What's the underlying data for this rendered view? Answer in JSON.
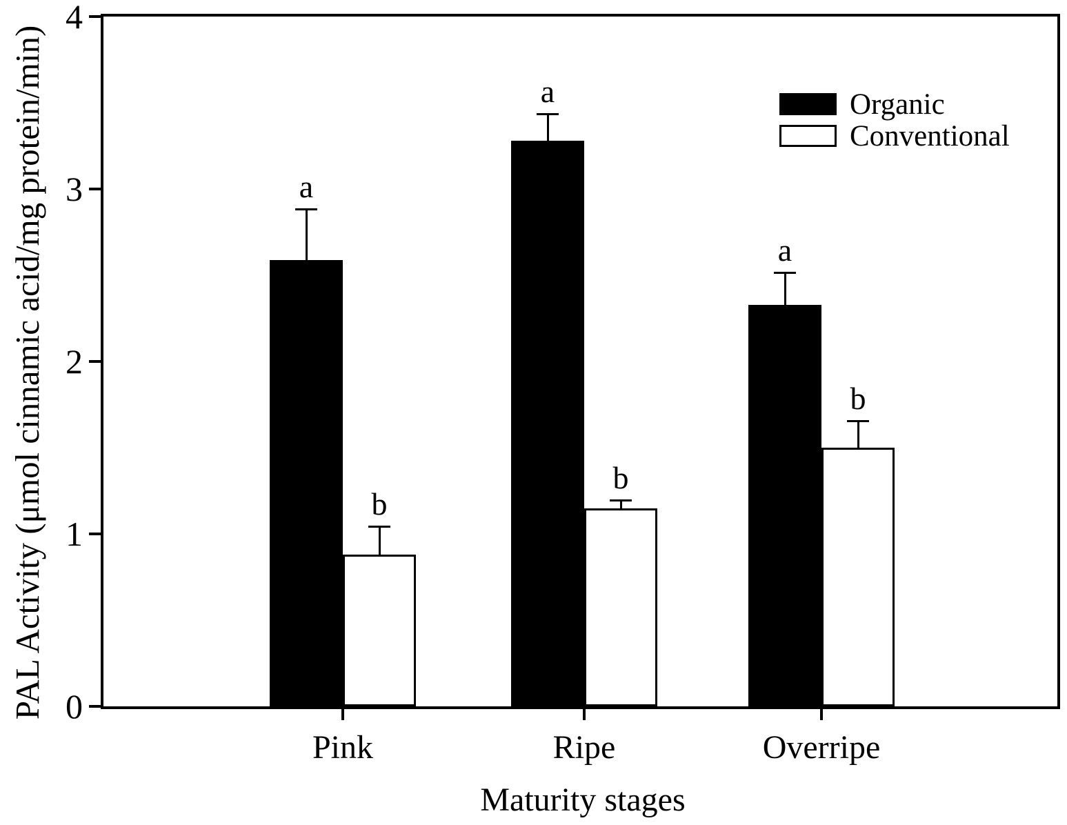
{
  "chart_data": {
    "type": "bar",
    "title": "",
    "xlabel": "Maturity stages",
    "ylabel": "PAL Activity (μmol cinnamic acid/mg protein/min)",
    "categories": [
      "Pink",
      "Ripe",
      "Overripe"
    ],
    "series": [
      {
        "name": "Organic",
        "fill": "#000000",
        "values": [
          2.59,
          3.28,
          2.33
        ],
        "errors_upper": [
          0.3,
          0.16,
          0.19
        ],
        "sig_letters": [
          "a",
          "a",
          "a"
        ]
      },
      {
        "name": "Conventional",
        "fill": "#ffffff",
        "values": [
          0.88,
          1.15,
          1.5
        ],
        "errors_upper": [
          0.17,
          0.05,
          0.16
        ],
        "sig_letters": [
          "b",
          "b",
          "b"
        ]
      }
    ],
    "ylim": [
      0,
      4
    ],
    "yticks": [
      0,
      1,
      2,
      3,
      4
    ],
    "grid": "off",
    "legend_position": "inside-top-right",
    "error_bars": "upper-only",
    "colors": {
      "axis": "#000000",
      "background": "#ffffff"
    }
  }
}
